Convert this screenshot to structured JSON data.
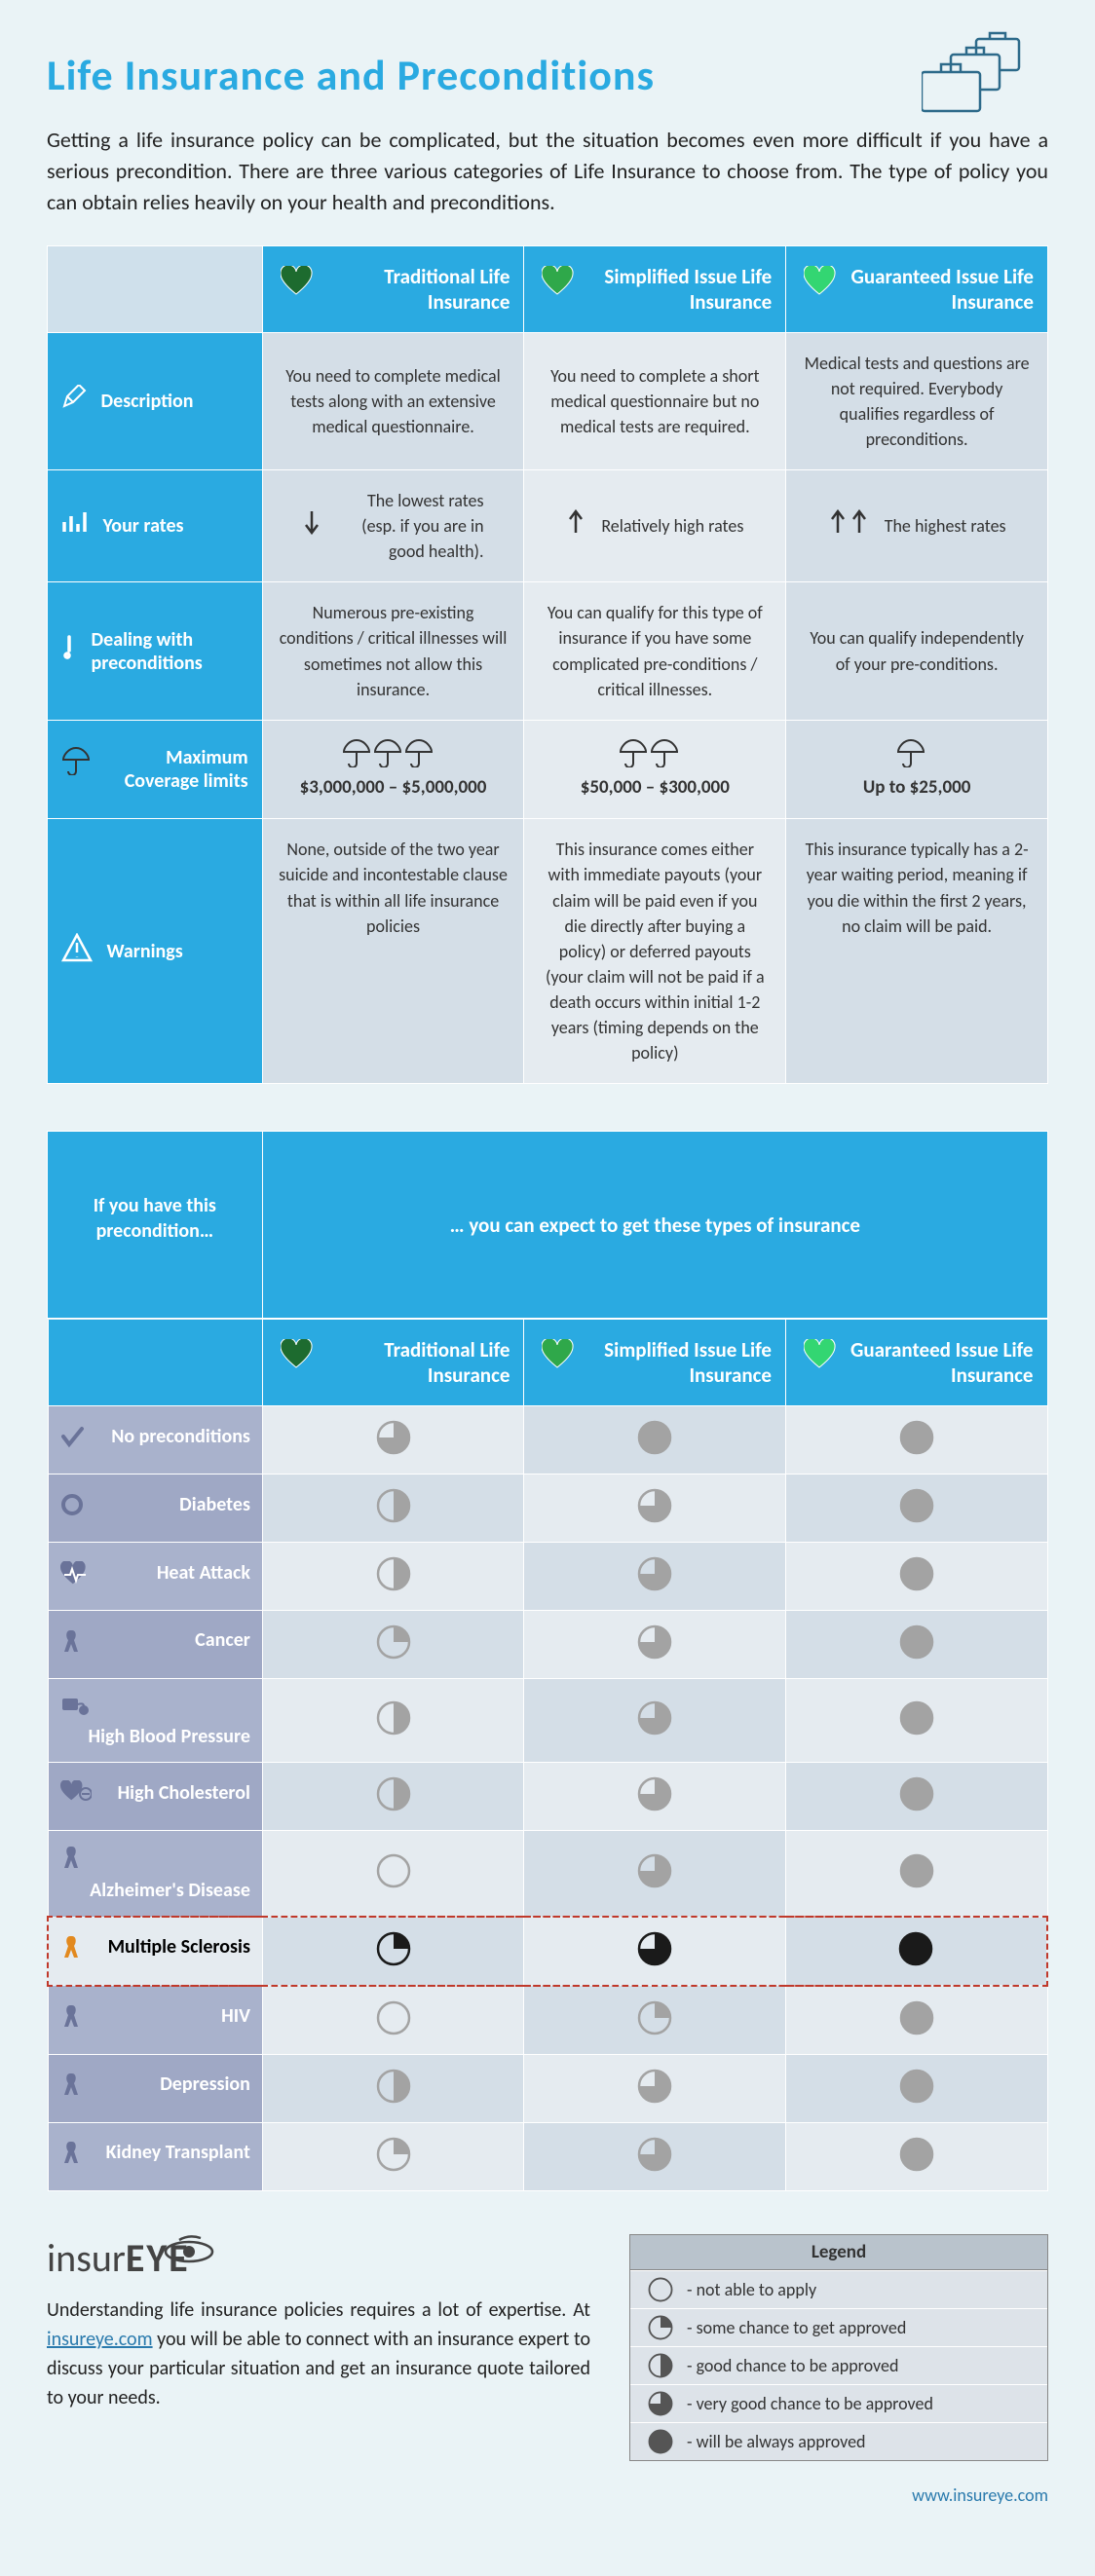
{
  "title": "Life Insurance and Preconditions",
  "intro": "Getting a life insurance policy can be complicated, but the situation becomes even more difficult if you have a serious precondition. There are three various categories of Life Insurance to choose from. The type of policy you can obtain relies heavily on your health and preconditions.",
  "cols": {
    "c1": "Traditional Life Insurance",
    "c2": "Simplified Issue Life Insurance",
    "c3": "Guaranteed Issue Life Insurance"
  },
  "heart_colors": {
    "c1": "#1d6b2f",
    "c2": "#2fa84a",
    "c3": "#33d672"
  },
  "rows": {
    "desc": {
      "label": "Description",
      "c1": "You need to complete medical tests along with an extensive medical questionnaire.",
      "c2": "You need to complete a short medical questionnaire but no medical tests are required.",
      "c3": "Medical tests and questions are not required. Everybody qualifies regardless of preconditions."
    },
    "rates": {
      "label": "Your rates",
      "c1": "The lowest rates (esp. if you are in good health).",
      "c2": "Relatively high rates",
      "c3": "The highest rates"
    },
    "precon": {
      "label": "Dealing with preconditions",
      "c1": "Numerous pre-existing conditions / critical illnesses will sometimes not allow this insurance.",
      "c2": "You can qualify for this type of insurance if you have some complicated pre-conditions / critical illnesses.",
      "c3": "You can qualify independently of your pre-conditions."
    },
    "cov": {
      "label": "Maximum Coverage limits",
      "c1": "$3,000,000 – $5,000,000",
      "c2": "$50,000 – $300,000",
      "c3": "Up to $25,000"
    },
    "warn": {
      "label": "Warnings",
      "c1": "None, outside of the two year suicide and incontestable clause that is within all life insurance policies",
      "c2": "This insurance comes either with immediate payouts (your claim will be paid even if you die directly after buying a policy) or deferred payouts (your claim will not be paid if a death occurs within initial 1-2 years (timing depends on the policy)",
      "c3": "This insurance typically has a 2-year waiting period, meaning if you die within the first 2 years, no claim will be paid."
    }
  },
  "t2": {
    "hdr_label": "If you have this precondition…",
    "hdr_span": "… you can expect to get these types of insurance",
    "conditions": [
      {
        "id": "none",
        "label": "No preconditions",
        "icon": "check",
        "c1": 3,
        "c2": 4,
        "c3": 4
      },
      {
        "id": "diabetes",
        "label": "Diabetes",
        "icon": "circleO",
        "c1": 2,
        "c2": 3,
        "c3": 4
      },
      {
        "id": "heart",
        "label": "Heat Attack",
        "icon": "heartbeat",
        "c1": 2,
        "c2": 3,
        "c3": 4
      },
      {
        "id": "cancer",
        "label": "Cancer",
        "icon": "ribbon",
        "c1": 1,
        "c2": 3,
        "c3": 4
      },
      {
        "id": "hbp",
        "label": "High Blood Pressure",
        "icon": "bp",
        "c1": 2,
        "c2": 3,
        "c3": 4
      },
      {
        "id": "chol",
        "label": "High Cholesterol",
        "icon": "heartdrop",
        "c1": 2,
        "c2": 3,
        "c3": 4
      },
      {
        "id": "alz",
        "label": "Alzheimer's Disease",
        "icon": "ribbon",
        "c1": 0,
        "c2": 3,
        "c3": 4
      },
      {
        "id": "ms",
        "label": "Multiple Sclerosis",
        "icon": "ribbon",
        "hl": true,
        "c1": 1,
        "c2": 3,
        "c3": 4
      },
      {
        "id": "hiv",
        "label": "HIV",
        "icon": "ribbon",
        "c1": 0,
        "c2": 1,
        "c3": 4
      },
      {
        "id": "dep",
        "label": "Depression",
        "icon": "ribbon",
        "c1": 2,
        "c2": 3,
        "c3": 4
      },
      {
        "id": "kidney",
        "label": "Kidney Transplant",
        "icon": "ribbon",
        "c1": 1,
        "c2": 3,
        "c3": 4
      }
    ]
  },
  "legend": {
    "title": "Legend",
    "items": [
      {
        "v": 0,
        "t": "- not able to apply"
      },
      {
        "v": 1,
        "t": "- some chance to get approved"
      },
      {
        "v": 2,
        "t": "- good chance to be approved"
      },
      {
        "v": 3,
        "t": "- very good chance to be approved"
      },
      {
        "v": 4,
        "t": "- will be always approved"
      }
    ]
  },
  "footer": {
    "logo_a": "insur",
    "logo_b": "EYE",
    "text_a": "Understanding life insurance policies requires a lot of expertise. At ",
    "link": "insureye.com",
    "text_b": " you will be able to connect with an insurance expert to discuss your particular situation and get an insurance quote tailored to your needs.",
    "url": "www.insureye.com"
  },
  "colors": {
    "accent": "#2aaae1",
    "body_alt": "#d4dee7",
    "body": "#e5ebf0",
    "pie_gray": "#a3a3a3",
    "pie_black": "#1a1a1a",
    "hl_border": "#c0392b"
  }
}
